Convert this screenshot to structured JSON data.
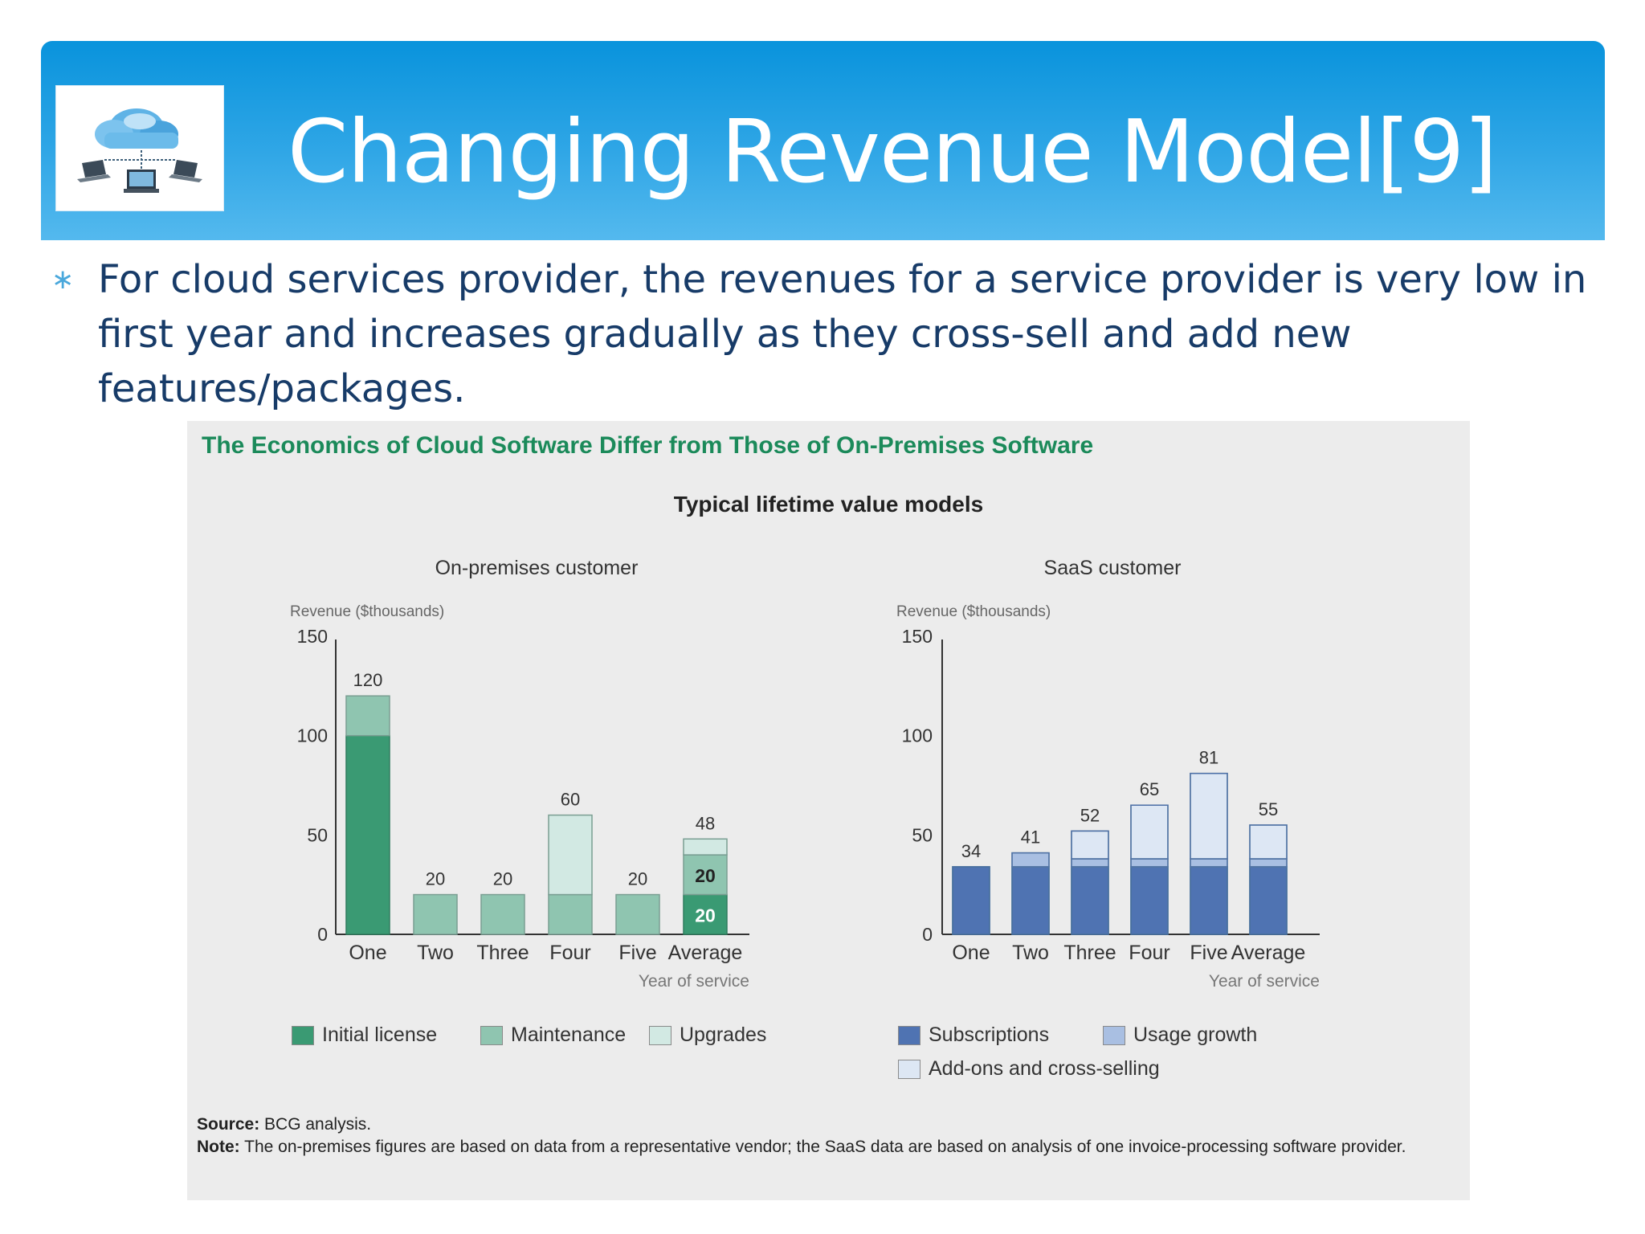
{
  "slide": {
    "title": "Changing Revenue Model[9]",
    "bullet_marker": "∗",
    "bullet": "For cloud services provider, the revenues for a service provider is very low in first year and increases gradually as they cross-sell and add new features/packages.",
    "logo_icon": "cloud-network-icon"
  },
  "figure": {
    "title": "The Economics of Cloud Software Differ from Those of On-Premises Software",
    "subtitle": "Typical lifetime value models",
    "source_label": "Source:",
    "source_text": "BCG analysis.",
    "note_label": "Note:",
    "note_text": "The on-premises figures are based on data from a representative vendor; the SaaS data are based on analysis of one invoice-processing software provider."
  },
  "colors": {
    "header": "#0993dc",
    "onprem_initial": "#3a9a73",
    "onprem_maintenance": "#8fc5b0",
    "onprem_upgrades": "#d2e9e3",
    "saas_subscriptions": "#4f73b2",
    "saas_usage": "#a9bfe2",
    "saas_addons": "#dde7f4"
  },
  "chart_data": [
    {
      "type": "bar",
      "stacked": true,
      "title": "On-premises customer",
      "ylabel": "Revenue ($thousands)",
      "xlabel": "Year of service",
      "ylim": [
        0,
        150
      ],
      "yticks": [
        0,
        50,
        100,
        150
      ],
      "categories": [
        "One",
        "Two",
        "Three",
        "Four",
        "Five",
        "Average"
      ],
      "totals": [
        120,
        20,
        20,
        60,
        20,
        48
      ],
      "series": [
        {
          "name": "Initial license",
          "values": [
            100,
            0,
            0,
            0,
            0,
            20
          ],
          "color": "#3a9a73"
        },
        {
          "name": "Maintenance",
          "values": [
            20,
            20,
            20,
            20,
            20,
            20
          ],
          "color": "#8fc5b0"
        },
        {
          "name": "Upgrades",
          "values": [
            0,
            0,
            0,
            40,
            0,
            8
          ],
          "color": "#d2e9e3"
        }
      ],
      "inner_labels": [
        {
          "category": "Average",
          "series": "Initial license",
          "text": "20"
        },
        {
          "category": "Average",
          "series": "Maintenance",
          "text": "20"
        }
      ],
      "legend": "bottom"
    },
    {
      "type": "bar",
      "stacked": true,
      "title": "SaaS customer",
      "ylabel": "Revenue ($thousands)",
      "xlabel": "Year of service",
      "ylim": [
        0,
        150
      ],
      "yticks": [
        0,
        50,
        100,
        150
      ],
      "categories": [
        "One",
        "Two",
        "Three",
        "Four",
        "Five",
        "Average"
      ],
      "totals": [
        34,
        41,
        52,
        65,
        81,
        55
      ],
      "series": [
        {
          "name": "Subscriptions",
          "values": [
            34,
            34,
            34,
            34,
            34,
            34
          ],
          "color": "#4f73b2"
        },
        {
          "name": "Usage growth",
          "values": [
            0,
            7,
            4,
            4,
            4,
            4
          ],
          "color": "#a9bfe2"
        },
        {
          "name": "Add-ons and cross-selling",
          "values": [
            0,
            0,
            14,
            27,
            43,
            17
          ],
          "color": "#dde7f4"
        }
      ],
      "legend": "bottom"
    }
  ]
}
